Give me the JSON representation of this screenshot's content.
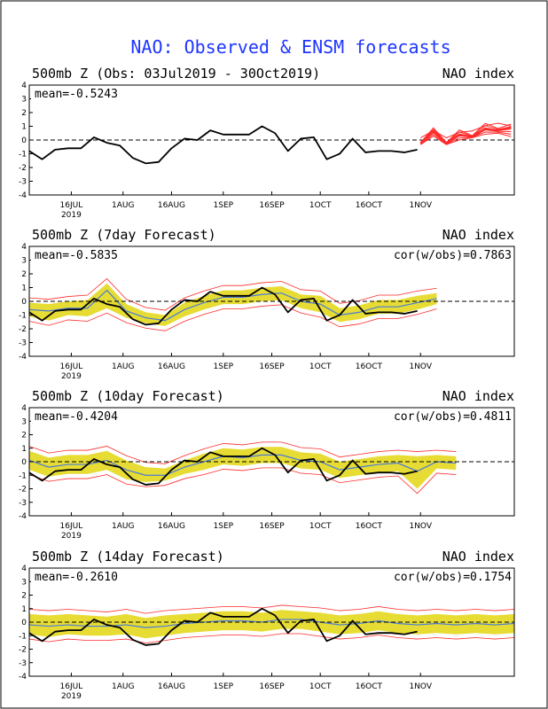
{
  "title": "NAO: Observed & ENSM forecasts",
  "colors": {
    "title": "#1f36ff",
    "observed": "#000000",
    "forecast_bounds": "#ff2a2a",
    "spread": "#e6dc33",
    "mean": "#4a7bd6",
    "zero": "#000000"
  },
  "x_ticks": [
    "16JUL",
    "1AUG",
    "16AUG",
    "1SEP",
    "16SEP",
    "1OCT",
    "16OCT",
    "1NOV"
  ],
  "year_label": "2019",
  "y_ticks": [
    "4",
    "3",
    "2",
    "1",
    "0",
    "-1",
    "-2",
    "-3",
    "-4"
  ],
  "panels": [
    {
      "title": "500mb Z (Obs: 03Jul2019 - 30Oct2019)",
      "right_title": "NAO index",
      "mean": "mean=-0.5243",
      "cor": ""
    },
    {
      "title": "500mb Z (7day Forecast)",
      "right_title": "NAO index",
      "mean": "mean=-0.5835",
      "cor": "cor(w/obs)=0.7863"
    },
    {
      "title": "500mb Z (10day Forecast)",
      "right_title": "NAO index",
      "mean": "mean=-0.4204",
      "cor": "cor(w/obs)=0.4811"
    },
    {
      "title": "500mb Z (14day Forecast)",
      "right_title": "NAO index",
      "mean": "mean=-0.2610",
      "cor": "cor(w/obs)=0.1754"
    }
  ],
  "chart_data": {
    "type": "line",
    "x_day_range": [
      0,
      150
    ],
    "ylim": [
      -4,
      4
    ],
    "observed": {
      "start": "03Jul2019",
      "end": "30Oct2019",
      "x": [
        0,
        4,
        8,
        12,
        16,
        20,
        24,
        28,
        32,
        36,
        40,
        44,
        48,
        52,
        56,
        60,
        64,
        68,
        72,
        76,
        80,
        84,
        88,
        92,
        96,
        100,
        104,
        108,
        112,
        116,
        120
      ],
      "y": [
        -0.8,
        -1.4,
        -0.7,
        -0.6,
        -0.6,
        0.2,
        -0.2,
        -0.4,
        -1.3,
        -1.7,
        -1.6,
        -0.6,
        0.1,
        0.0,
        0.7,
        0.4,
        0.4,
        0.4,
        1.0,
        0.5,
        -0.8,
        0.1,
        0.2,
        -1.4,
        -1.0,
        0.1,
        -0.9,
        -0.8,
        -0.8,
        -0.9,
        -0.7
      ]
    },
    "ensemble_forecast": {
      "x": [
        121,
        125,
        129,
        133,
        137,
        141,
        145,
        149
      ],
      "mean": [
        -0.2,
        0.6,
        -0.2,
        0.4,
        0.2,
        0.8,
        0.7,
        0.9
      ],
      "min": [
        -0.5,
        0.3,
        -0.5,
        0.0,
        0.0,
        0.4,
        0.3,
        0.2
      ],
      "max": [
        0.1,
        0.9,
        0.1,
        0.8,
        0.6,
        1.3,
        1.2,
        1.3
      ]
    },
    "forecasts": [
      {
        "lead": "7day",
        "x": [
          0,
          6,
          12,
          18,
          24,
          30,
          36,
          42,
          48,
          54,
          60,
          66,
          72,
          78,
          84,
          90,
          96,
          102,
          108,
          114,
          120,
          126
        ],
        "mean": [
          -0.6,
          -0.7,
          -0.5,
          -0.5,
          0.8,
          -0.7,
          -1.2,
          -1.4,
          -0.6,
          -0.1,
          0.3,
          0.3,
          0.5,
          0.6,
          0.0,
          -0.2,
          -1.0,
          -0.8,
          -0.4,
          -0.4,
          -0.1,
          0.2
        ],
        "lo": [
          -1.1,
          -1.4,
          -1.0,
          -1.1,
          -0.5,
          -1.2,
          -1.6,
          -1.8,
          -1.1,
          -0.6,
          -0.2,
          -0.2,
          0.0,
          0.1,
          -0.5,
          -0.8,
          -1.5,
          -1.3,
          -0.9,
          -0.9,
          -0.6,
          -0.2
        ],
        "hi": [
          -0.1,
          -0.2,
          0.0,
          0.1,
          1.3,
          -0.2,
          -0.8,
          -1.0,
          -0.1,
          0.4,
          0.8,
          0.8,
          1.0,
          1.1,
          0.5,
          0.4,
          -0.5,
          -0.3,
          0.1,
          0.1,
          0.4,
          0.6
        ]
      },
      {
        "lead": "10day",
        "x": [
          0,
          6,
          12,
          18,
          24,
          30,
          36,
          42,
          48,
          54,
          60,
          66,
          72,
          78,
          84,
          90,
          96,
          102,
          108,
          114,
          120,
          126,
          132
        ],
        "mean": [
          0.1,
          -0.4,
          -0.2,
          -0.2,
          0.1,
          -0.6,
          -1.0,
          -1.0,
          -0.4,
          0.0,
          0.4,
          0.3,
          0.5,
          0.5,
          0.1,
          0.0,
          -0.6,
          -0.4,
          -0.2,
          -0.1,
          -0.7,
          0.0,
          -0.1
        ],
        "lo": [
          -0.6,
          -1.1,
          -0.9,
          -0.9,
          -0.6,
          -1.3,
          -1.5,
          -1.4,
          -0.9,
          -0.6,
          -0.2,
          -0.3,
          -0.1,
          -0.1,
          -0.5,
          -0.6,
          -1.2,
          -1.0,
          -0.8,
          -0.7,
          -2.0,
          -0.5,
          -0.6
        ],
        "hi": [
          0.8,
          0.3,
          0.5,
          0.5,
          0.8,
          0.1,
          -0.4,
          -0.5,
          0.1,
          0.6,
          1.0,
          0.9,
          1.1,
          1.1,
          0.7,
          0.6,
          0.0,
          0.2,
          0.4,
          0.5,
          0.4,
          0.5,
          0.4
        ]
      },
      {
        "lead": "14day",
        "x": [
          0,
          6,
          12,
          18,
          24,
          30,
          36,
          42,
          48,
          54,
          60,
          66,
          72,
          78,
          84,
          90,
          96,
          102,
          108,
          114,
          120,
          126,
          132,
          138,
          144,
          150
        ],
        "mean": [
          -0.2,
          -0.3,
          -0.2,
          -0.3,
          -0.3,
          -0.2,
          -0.4,
          -0.3,
          -0.1,
          0.0,
          0.1,
          0.1,
          0.0,
          0.2,
          0.2,
          0.0,
          -0.2,
          -0.1,
          0.1,
          -0.1,
          -0.2,
          -0.1,
          -0.2,
          -0.1,
          -0.2,
          -0.1
        ],
        "lo": [
          -0.9,
          -1.1,
          -0.9,
          -1.0,
          -1.0,
          -0.9,
          -1.2,
          -1.0,
          -0.8,
          -0.7,
          -0.6,
          -0.6,
          -0.7,
          -0.5,
          -0.5,
          -0.7,
          -0.9,
          -0.8,
          -0.6,
          -0.8,
          -0.9,
          -0.8,
          -0.9,
          -0.8,
          -0.9,
          -0.8
        ],
        "hi": [
          0.6,
          0.5,
          0.6,
          0.5,
          0.4,
          0.6,
          0.3,
          0.5,
          0.6,
          0.7,
          0.8,
          0.8,
          0.7,
          0.9,
          0.8,
          0.7,
          0.5,
          0.6,
          0.8,
          0.6,
          0.5,
          0.6,
          0.5,
          0.6,
          0.5,
          0.6
        ]
      }
    ]
  }
}
